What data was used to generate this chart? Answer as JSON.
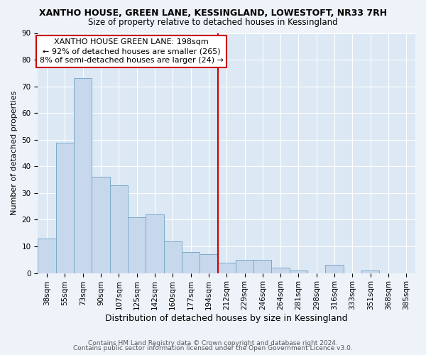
{
  "title": "XANTHO HOUSE, GREEN LANE, KESSINGLAND, LOWESTOFT, NR33 7RH",
  "subtitle": "Size of property relative to detached houses in Kessingland",
  "xlabel": "Distribution of detached houses by size in Kessingland",
  "ylabel": "Number of detached properties",
  "bar_labels": [
    "38sqm",
    "55sqm",
    "73sqm",
    "90sqm",
    "107sqm",
    "125sqm",
    "142sqm",
    "160sqm",
    "177sqm",
    "194sqm",
    "212sqm",
    "229sqm",
    "246sqm",
    "264sqm",
    "281sqm",
    "298sqm",
    "316sqm",
    "333sqm",
    "351sqm",
    "368sqm",
    "385sqm"
  ],
  "bar_heights": [
    13,
    49,
    73,
    36,
    33,
    21,
    22,
    12,
    8,
    7,
    4,
    5,
    5,
    2,
    1,
    0,
    3,
    0,
    1,
    0,
    0
  ],
  "bar_color": "#c8d8ec",
  "bar_edge_color": "#7aaac8",
  "vline_index": 9.5,
  "vline_color": "#cc0000",
  "annotation_title": "XANTHO HOUSE GREEN LANE: 198sqm",
  "annotation_line1": "← 92% of detached houses are smaller (265)",
  "annotation_line2": "8% of semi-detached houses are larger (24) →",
  "annotation_box_color": "#ffffff",
  "annotation_box_edge_color": "#cc0000",
  "ylim": [
    0,
    90
  ],
  "yticks": [
    0,
    10,
    20,
    30,
    40,
    50,
    60,
    70,
    80,
    90
  ],
  "footer_line1": "Contains HM Land Registry data © Crown copyright and database right 2024.",
  "footer_line2": "Contains public sector information licensed under the Open Government Licence v3.0.",
  "bg_color": "#eef3fa",
  "plot_bg_color": "#dce8f4",
  "grid_color": "#ffffff",
  "title_fontsize": 9,
  "subtitle_fontsize": 8.5,
  "xlabel_fontsize": 9,
  "ylabel_fontsize": 8,
  "tick_fontsize": 7.5,
  "footer_fontsize": 6.5,
  "annotation_fontsize": 8
}
